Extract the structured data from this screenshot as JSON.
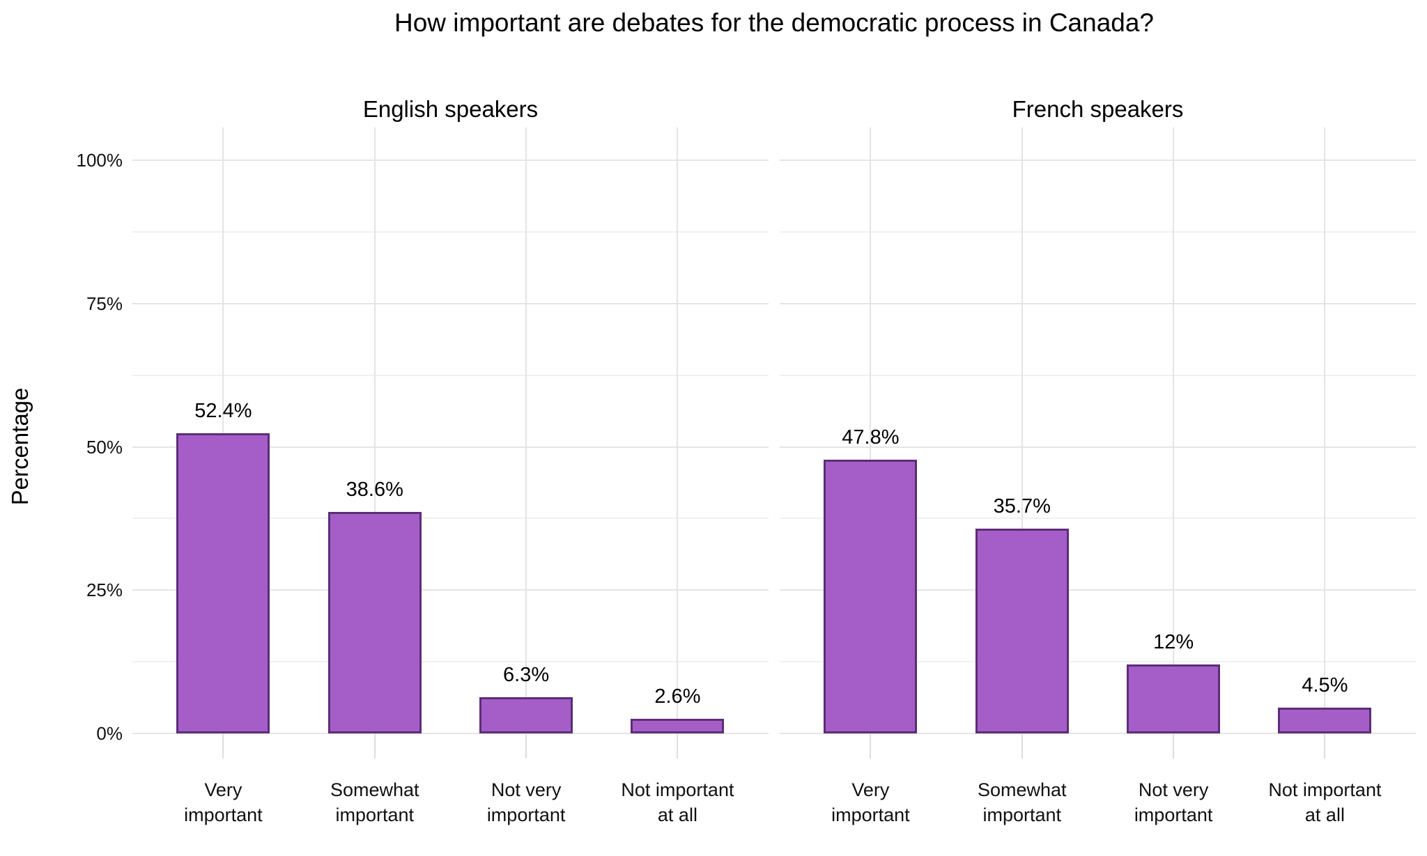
{
  "chart_data": {
    "type": "bar",
    "title": "How important are debates for the democratic process in Canada?",
    "ylabel": "Percentage",
    "ylim": [
      0,
      100
    ],
    "grid": true,
    "legend": "none",
    "y_axis": {
      "major_ticks": [
        {
          "label": "0%",
          "value": 0
        },
        {
          "label": "25%",
          "value": 25
        },
        {
          "label": "50%",
          "value": 50
        },
        {
          "label": "75%",
          "value": 75
        },
        {
          "label": "100%",
          "value": 100
        }
      ],
      "minor_values": [
        12.5,
        37.5,
        62.5,
        87.5
      ]
    },
    "categories": [
      {
        "lines": [
          "Very",
          "important"
        ]
      },
      {
        "lines": [
          "Somewhat",
          "important"
        ]
      },
      {
        "lines": [
          "Not very",
          "important"
        ]
      },
      {
        "lines": [
          "Not important",
          "at all"
        ]
      }
    ],
    "series": [
      {
        "name": "English speakers",
        "values": [
          52.4,
          38.6,
          6.3,
          2.6
        ],
        "labels": [
          "52.4%",
          "38.6%",
          "6.3%",
          "2.6%"
        ]
      },
      {
        "name": "French speakers",
        "values": [
          47.8,
          35.7,
          12,
          4.5
        ],
        "labels": [
          "47.8%",
          "35.7%",
          "12%",
          "4.5%"
        ]
      }
    ],
    "colors": {
      "bar_fill": "#a55ec8",
      "bar_border": "#5c2d77",
      "grid_major": "#e4e4e4",
      "grid_minor": "#f0f0f0",
      "tick_mark": "#dddddd",
      "text": "#111111"
    }
  }
}
